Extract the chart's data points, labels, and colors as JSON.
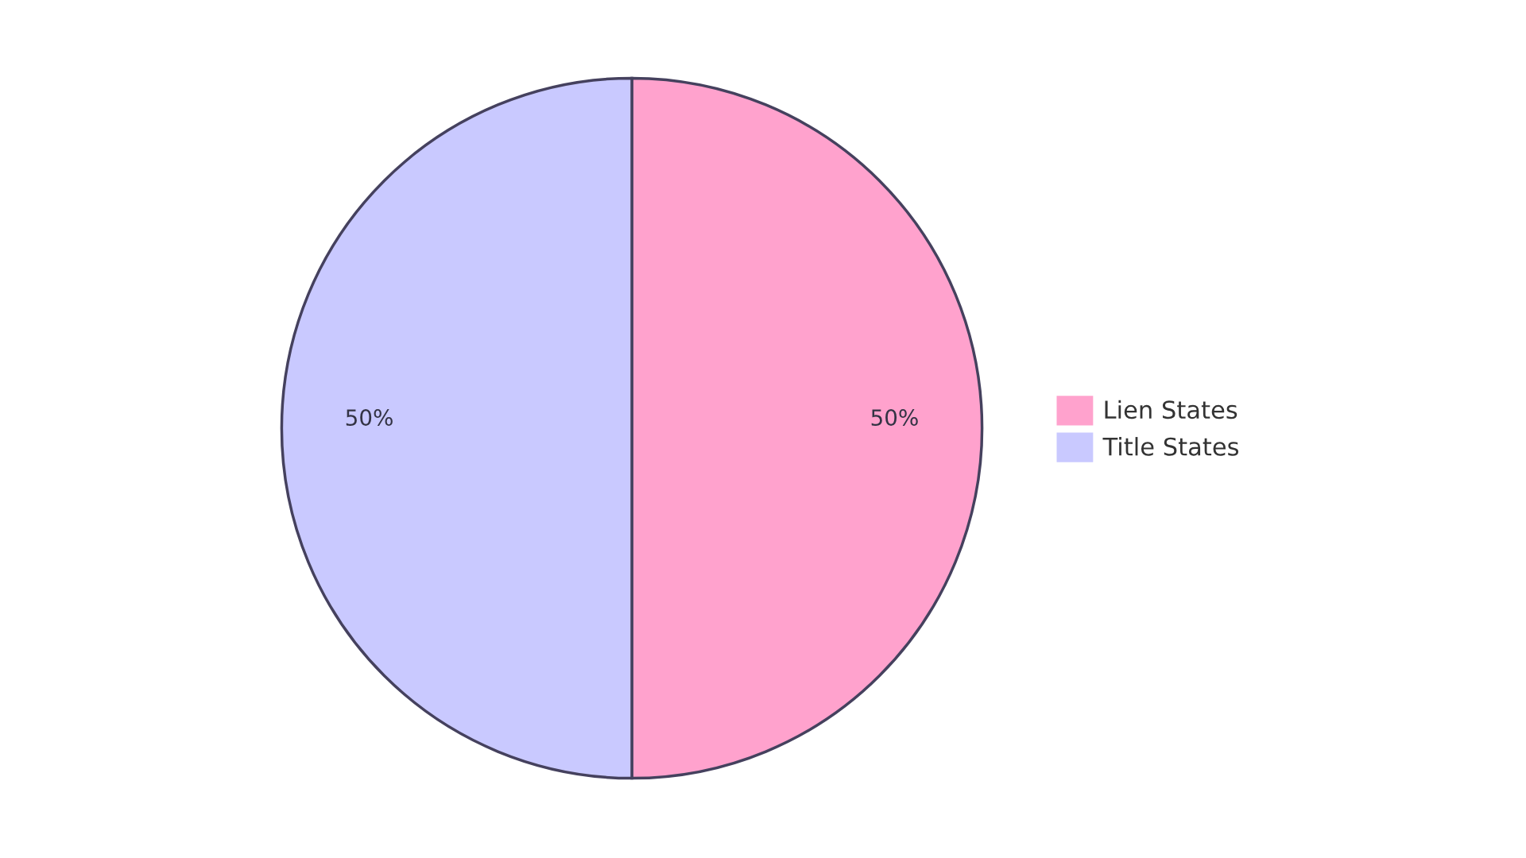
{
  "chart_data": {
    "type": "pie",
    "categories": [
      "Lien States",
      "Title States"
    ],
    "values": [
      50,
      50
    ],
    "colors": [
      "#ffa2cd",
      "#c9c9ff"
    ],
    "value_labels": [
      "50%",
      "50%"
    ],
    "legend": "right"
  }
}
